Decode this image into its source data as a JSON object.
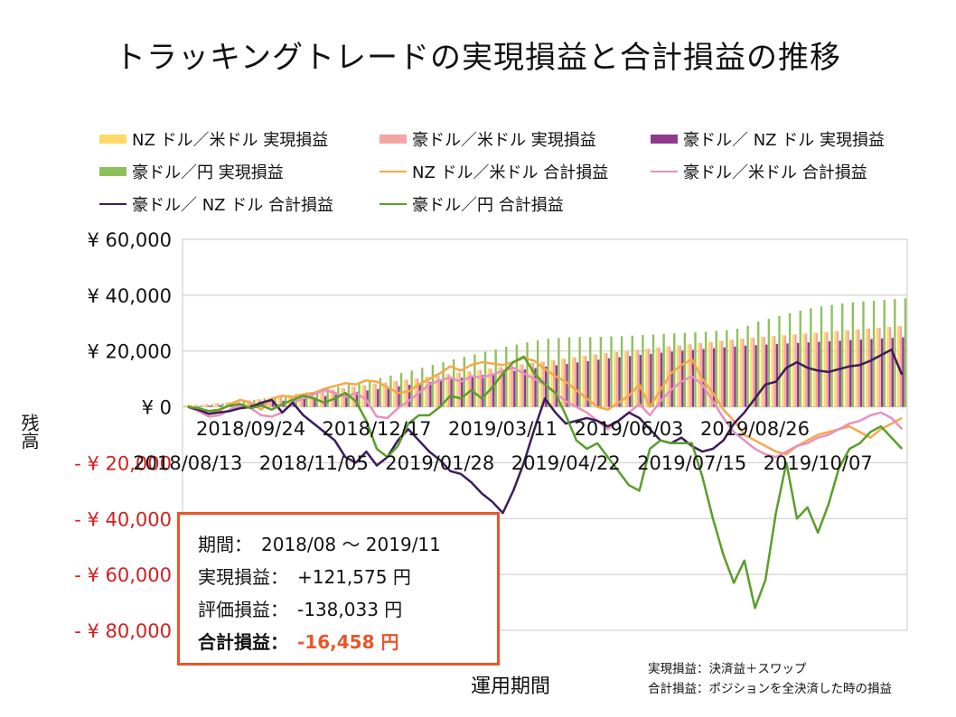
{
  "chart_data": {
    "type": "bar+line",
    "title": "トラッキングトレードの実現損益と合計損益の推移",
    "ylabel": "残高",
    "xlabel": "運用期間",
    "ylim": [
      -80000,
      60000
    ],
    "y_ticks": [
      {
        "value": 60000,
        "label": "¥ 60,000"
      },
      {
        "value": 40000,
        "label": "¥ 40,000"
      },
      {
        "value": 20000,
        "label": "¥ 20,000"
      },
      {
        "value": 0,
        "label": "¥ 0"
      },
      {
        "value": -20000,
        "label": "- ¥ 20,000"
      },
      {
        "value": -40000,
        "label": "- ¥ 40,000"
      },
      {
        "value": -60000,
        "label": "- ¥ 60,000"
      },
      {
        "value": -80000,
        "label": "- ¥ 80,000"
      }
    ],
    "x_ticks": [
      {
        "index": 0,
        "label": "2018/08/13"
      },
      {
        "index": 6,
        "label": "2018/09/24"
      },
      {
        "index": 12,
        "label": "2018/11/05"
      },
      {
        "index": 18,
        "label": "2018/12/17"
      },
      {
        "index": 24,
        "label": "2019/01/28"
      },
      {
        "index": 30,
        "label": "2019/03/11"
      },
      {
        "index": 36,
        "label": "2019/04/22"
      },
      {
        "index": 42,
        "label": "2019/06/03"
      },
      {
        "index": 48,
        "label": "2019/07/15"
      },
      {
        "index": 54,
        "label": "2019/08/26"
      },
      {
        "index": 60,
        "label": "2019/10/07"
      }
    ],
    "grid": true,
    "legend_position": "top",
    "series": [
      {
        "name": "NZ ドル／米ドル 実現損益",
        "kind": "bar",
        "color": "#ffd966",
        "values": [
          500,
          800,
          1100,
          1400,
          1700,
          2000,
          2400,
          2800,
          3300,
          3800,
          4300,
          4800,
          5300,
          5800,
          6300,
          6800,
          7300,
          7800,
          8300,
          8800,
          9300,
          9800,
          10300,
          10800,
          11300,
          11800,
          12300,
          12800,
          13300,
          13800,
          14300,
          14800,
          15300,
          15800,
          16300,
          16800,
          17300,
          17800,
          18300,
          18800,
          19300,
          19700,
          20100,
          20500,
          20900,
          21300,
          21700,
          22100,
          22500,
          22900,
          23300,
          23700,
          24100,
          24500,
          24800,
          25100,
          25400,
          25700,
          26000,
          26300,
          26600,
          26900,
          27200,
          27500,
          27800,
          28100,
          28400,
          28700,
          29000
        ]
      },
      {
        "name": "豪ドル／米ドル 実現損益",
        "kind": "bar",
        "color": "#f4a6a6",
        "values": [
          400,
          700,
          1000,
          1300,
          1600,
          1900,
          2300,
          2700,
          3200,
          3700,
          4200,
          4700,
          5200,
          5700,
          6200,
          6700,
          7200,
          7700,
          8200,
          8700,
          9200,
          9700,
          10200,
          10700,
          11200,
          11700,
          12200,
          12700,
          13200,
          13700,
          14200,
          14700,
          15200,
          15700,
          16200,
          16700,
          17200,
          17700,
          18200,
          18700,
          19200,
          19600,
          20000,
          20400,
          20800,
          21200,
          21600,
          22000,
          22400,
          22800,
          23200,
          23600,
          24000,
          24400,
          24700,
          25000,
          25300,
          25600,
          25900,
          26200,
          26500,
          26800,
          27100,
          27400,
          27700,
          28000,
          28300,
          28600,
          28900
        ]
      },
      {
        "name": "豪ドル／ NZ ドル 実現損益",
        "kind": "bar",
        "color": "#8e3a8e",
        "values": [
          100,
          200,
          400,
          600,
          800,
          1000,
          1200,
          1500,
          1800,
          2200,
          2600,
          3000,
          3400,
          3900,
          4400,
          4900,
          5400,
          5900,
          6400,
          6900,
          7400,
          7900,
          8400,
          8900,
          9400,
          9900,
          10400,
          10900,
          11400,
          11900,
          12400,
          12900,
          13400,
          13900,
          14400,
          14900,
          15400,
          15900,
          16400,
          16900,
          17400,
          17800,
          18200,
          18600,
          19000,
          19400,
          19800,
          20100,
          20400,
          20700,
          21000,
          21300,
          21600,
          21900,
          22100,
          22300,
          22500,
          22700,
          22900,
          23100,
          23300,
          23500,
          23700,
          23900,
          24100,
          24300,
          24500,
          24700,
          24900
        ]
      },
      {
        "name": "豪ドル／円 実現損益",
        "kind": "bar",
        "color": "#8fc15a",
        "values": [
          300,
          600,
          900,
          1200,
          1600,
          2000,
          2500,
          3000,
          3500,
          4000,
          4600,
          5200,
          5800,
          6500,
          7200,
          7900,
          8700,
          9500,
          10300,
          11200,
          12100,
          13000,
          14000,
          15000,
          16000,
          17000,
          17900,
          18800,
          19700,
          20600,
          21500,
          22300,
          23100,
          23800,
          24400,
          24700,
          24900,
          25000,
          25000,
          25100,
          25200,
          25300,
          25500,
          25700,
          25900,
          26100,
          26300,
          26500,
          26700,
          26900,
          27200,
          27500,
          28000,
          29000,
          30500,
          31500,
          32500,
          33500,
          34500,
          35300,
          36000,
          36500,
          37000,
          37400,
          37700,
          38000,
          38300,
          38600,
          38900
        ]
      },
      {
        "name": "NZ ドル／米ドル 合計損益",
        "kind": "line",
        "color": "#f5a84c",
        "values": [
          500,
          -1000,
          -2500,
          -1500,
          1000,
          2500,
          1500,
          -1000,
          3000,
          4000,
          3500,
          4500,
          5000,
          6500,
          7500,
          8500,
          8000,
          9500,
          9000,
          7000,
          5000,
          5500,
          8000,
          10000,
          12000,
          14500,
          13000,
          15000,
          16000,
          15500,
          15000,
          16000,
          17500,
          16500,
          13500,
          11000,
          9000,
          6000,
          3000,
          0,
          -1000,
          1500,
          4000,
          8000,
          0,
          6000,
          12000,
          15000,
          17000,
          10000,
          5000,
          -1000,
          -5000,
          -10000,
          -12000,
          -14000,
          -16000,
          -17000,
          -14000,
          -12000,
          -10000,
          -9000,
          -8000,
          -7000,
          -9000,
          -11000,
          -8000,
          -6000,
          -4000
        ]
      },
      {
        "name": "豪ドル／米ドル 合計損益",
        "kind": "line",
        "color": "#e890c0",
        "values": [
          0,
          -1500,
          -3500,
          -3000,
          -1000,
          500,
          -500,
          -3000,
          -3500,
          -2000,
          1500,
          3000,
          4500,
          6000,
          5000,
          3500,
          5000,
          2500,
          -3500,
          -4000,
          -500,
          2000,
          5000,
          8000,
          9500,
          10500,
          9000,
          11000,
          10500,
          11500,
          13000,
          14000,
          12000,
          10000,
          8000,
          5000,
          2000,
          0,
          -2000,
          -5000,
          -8000,
          -5000,
          -2000,
          1000,
          -3000,
          2000,
          6000,
          9000,
          11000,
          8000,
          2000,
          -4000,
          -9000,
          -12000,
          -15000,
          -17000,
          -18000,
          -16000,
          -14000,
          -13000,
          -11000,
          -10000,
          -8000,
          -6000,
          -5000,
          -3000,
          -2000,
          -4000,
          -8000
        ]
      },
      {
        "name": "豪ドル／ NZ ドル 合計損益",
        "kind": "line",
        "color": "#3c1c5c",
        "values": [
          0,
          -1000,
          -2500,
          -2000,
          -1500,
          -500,
          0,
          1500,
          2500,
          -2000,
          1500,
          -3000,
          -6000,
          -9000,
          -12000,
          -18000,
          -20000,
          -16000,
          -21000,
          -18000,
          -12000,
          -8000,
          -12000,
          -16000,
          -19000,
          -23000,
          -24000,
          -27000,
          -31000,
          -34000,
          -38000,
          -30000,
          -20000,
          -8000,
          3000,
          -2000,
          -6000,
          -5000,
          -4000,
          -5000,
          -7000,
          -5000,
          -2000,
          -4000,
          -8000,
          -12000,
          -13000,
          -11000,
          -14000,
          -16000,
          -15000,
          -12000,
          -6000,
          -2000,
          3000,
          8000,
          9000,
          14000,
          16000,
          14000,
          13000,
          12500,
          13500,
          14500,
          15000,
          16500,
          18500,
          20500,
          11500
        ]
      },
      {
        "name": "豪ドル／円 合計損益",
        "kind": "line",
        "color": "#5a9e2a",
        "values": [
          0,
          -500,
          -1500,
          -1000,
          500,
          1000,
          -500,
          500,
          -1000,
          1000,
          2500,
          4000,
          3000,
          1500,
          3000,
          5000,
          2000,
          -5000,
          -15000,
          -18000,
          -14000,
          -6000,
          -3000,
          -3000,
          0,
          4000,
          3000,
          6000,
          3000,
          7000,
          12000,
          16000,
          18000,
          12000,
          8000,
          5000,
          -3000,
          -12000,
          -15000,
          -13000,
          -18000,
          -23000,
          -28000,
          -30000,
          -15000,
          -12000,
          -13000,
          -13000,
          -13000,
          -25000,
          -40000,
          -53000,
          -63000,
          -55000,
          -72000,
          -62000,
          -38000,
          -20000,
          -40000,
          -36000,
          -45000,
          -35000,
          -22000,
          -15000,
          -13000,
          -9000,
          -7000,
          -11000,
          -15000
        ]
      }
    ]
  },
  "summary": {
    "period_label": "期間：",
    "period_value": "2018/08 ～ 2019/11",
    "realized_label": "実現損益：",
    "realized_value": "+121,575 円",
    "unrealized_label": "評価損益：",
    "unrealized_value": "-138,033 円",
    "total_label": "合計損益：",
    "total_value": "-16,458 円"
  },
  "notes": {
    "line1": "実現損益：決済益＋スワップ",
    "line2": "合計損益：ポジションを全決済した時の損益"
  },
  "colors": {
    "negative_tick": "#d21f1f",
    "summary_border": "#e8562a",
    "grid": "#c8c8c8"
  }
}
